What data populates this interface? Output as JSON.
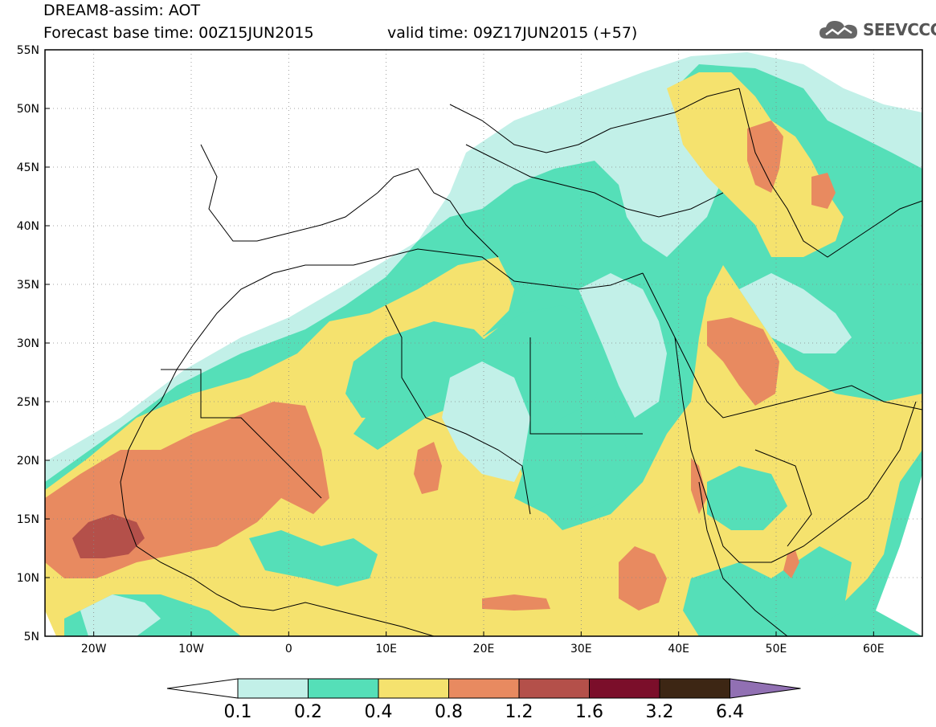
{
  "header": {
    "title": "DREAM8-assim: AOT",
    "base_time": "Forecast base time: 00Z15JUN2015",
    "valid_time": "valid time: 09Z17JUN2015 (+57)",
    "logo_text": "SEEVCCC"
  },
  "map": {
    "lon_range": [
      -25,
      65
    ],
    "lat_range": [
      5,
      55
    ],
    "lat_labels": [
      "55N",
      "50N",
      "45N",
      "40N",
      "35N",
      "30N",
      "25N",
      "20N",
      "15N",
      "10N",
      "5N"
    ],
    "lon_labels": [
      "20W",
      "10W",
      "0",
      "10E",
      "20E",
      "30E",
      "40E",
      "50E",
      "60E"
    ],
    "colors": {
      "c1": "#c2f0e8",
      "c2": "#55dfb8",
      "c3": "#f5e26e",
      "c4": "#e88a60",
      "c5": "#b4504a",
      "c6": "#7b0e2a",
      "c7": "#3d2614",
      "c8": "#9170b3"
    }
  },
  "colorbar": {
    "labels": [
      "0.1",
      "0.2",
      "0.4",
      "0.8",
      "1.2",
      "1.6",
      "3.2",
      "6.4"
    ],
    "colors": [
      "#c2f0e8",
      "#55dfb8",
      "#f5e26e",
      "#e88a60",
      "#b4504a",
      "#7b0e2a",
      "#3d2614"
    ],
    "under_color": "#ffffff",
    "over_color": "#9170b3"
  }
}
